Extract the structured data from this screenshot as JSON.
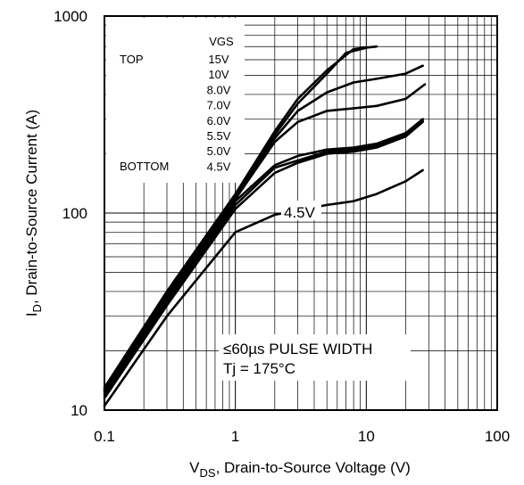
{
  "chart_data": {
    "type": "line",
    "x_scale": "log",
    "y_scale": "log",
    "xlim": [
      0.1,
      100
    ],
    "ylim": [
      10,
      1000
    ],
    "grid": true,
    "x_ticks": [
      "0.1",
      "1",
      "10",
      "100"
    ],
    "y_ticks": [
      "10",
      "100",
      "1000"
    ],
    "xlabel": {
      "main": "V",
      "sub": "DS",
      "rest": ", Drain-to-Source Voltage (V)"
    },
    "ylabel": {
      "main": "I",
      "sub": "D",
      "rest": ", Drain-to-Source Current (A)"
    },
    "legend": {
      "header": "VGS",
      "top_label": "TOP",
      "bottom_label": "BOTTOM",
      "entries": [
        "15V",
        "10V",
        "8.0V",
        "7.0V",
        "6.0V",
        "5.5V",
        "5.0V",
        "4.5V"
      ]
    },
    "annotation": {
      "line1": "≤60µs PULSE WIDTH",
      "line2": "Tj = 175°C"
    },
    "curve_label": "4.5V",
    "series": [
      {
        "x": [
          0.1,
          0.3,
          1,
          2,
          3,
          5,
          8,
          12
        ],
        "y": [
          13,
          40,
          125,
          260,
          380,
          530,
          680,
          700
        ]
      },
      {
        "x": [
          0.1,
          0.3,
          1,
          2,
          3,
          5,
          7,
          10
        ],
        "y": [
          12.8,
          39,
          122,
          250,
          360,
          510,
          650,
          690
        ]
      },
      {
        "x": [
          0.1,
          0.3,
          1,
          2,
          3,
          5,
          8,
          12,
          20,
          27
        ],
        "y": [
          12.6,
          38,
          120,
          240,
          330,
          410,
          460,
          480,
          510,
          560
        ]
      },
      {
        "x": [
          0.1,
          0.3,
          1,
          2,
          3,
          5,
          8,
          12,
          20,
          28
        ],
        "y": [
          12.4,
          37,
          118,
          230,
          290,
          330,
          340,
          350,
          380,
          450
        ]
      },
      {
        "x": [
          0.1,
          0.3,
          1,
          2,
          3,
          5,
          8,
          12,
          20,
          27
        ],
        "y": [
          12.1,
          36,
          115,
          175,
          195,
          210,
          215,
          225,
          255,
          300
        ]
      },
      {
        "x": [
          0.1,
          0.3,
          1,
          2,
          3,
          5,
          8,
          12,
          20,
          27
        ],
        "y": [
          11.8,
          35,
          110,
          170,
          185,
          205,
          210,
          220,
          250,
          295
        ]
      },
      {
        "x": [
          0.1,
          0.3,
          1,
          2,
          3,
          5,
          8,
          12,
          20,
          27
        ],
        "y": [
          11.5,
          34,
          105,
          160,
          180,
          200,
          205,
          215,
          245,
          290
        ]
      },
      {
        "x": [
          0.1,
          0.3,
          1,
          2,
          3,
          5,
          8,
          12,
          20,
          27
        ],
        "y": [
          10.5,
          30,
          80,
          98,
          103,
          110,
          115,
          125,
          145,
          165
        ]
      }
    ]
  }
}
